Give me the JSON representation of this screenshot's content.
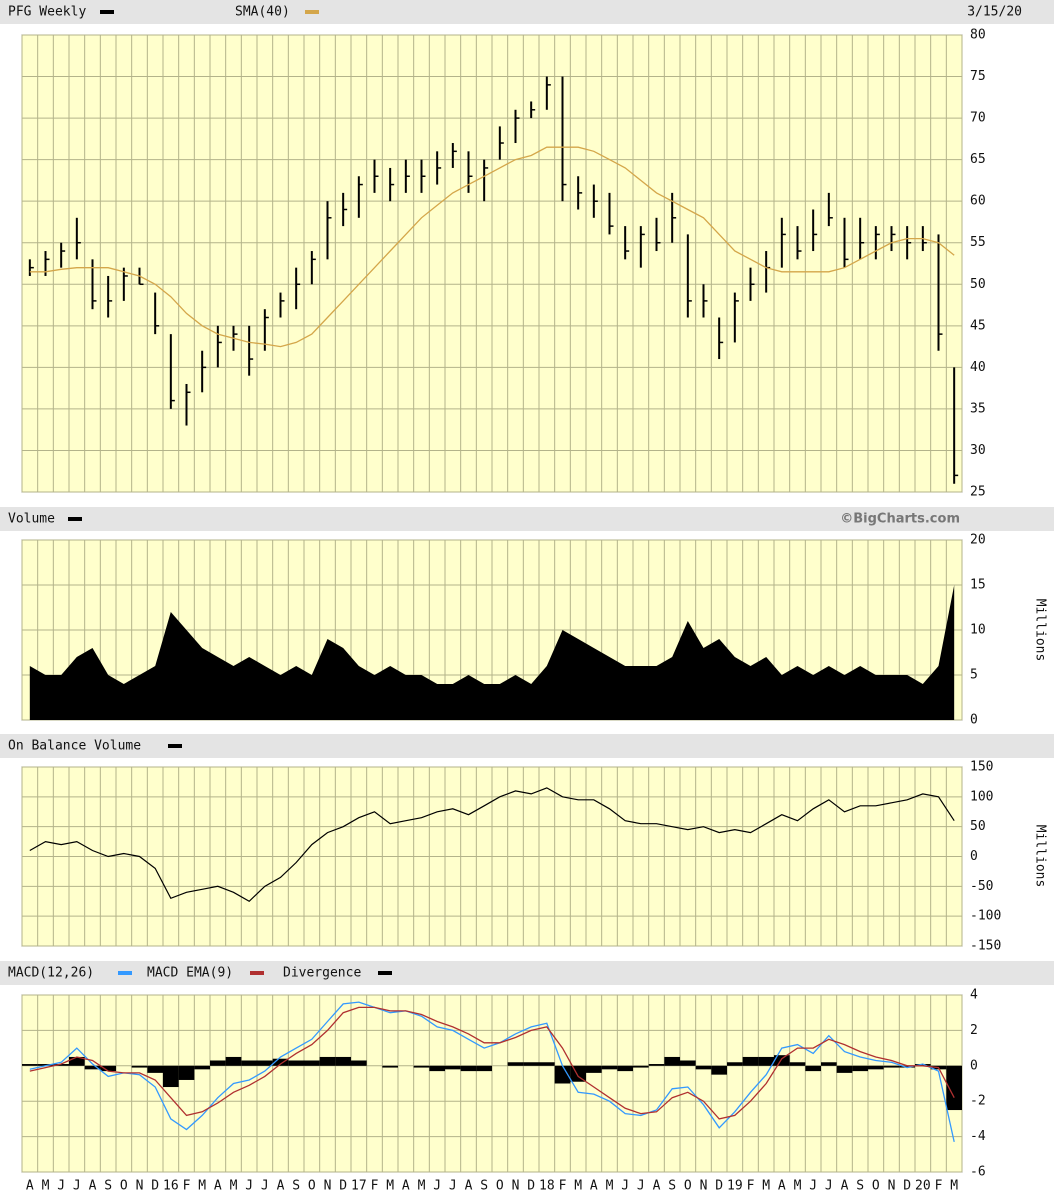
{
  "chart_data": [
    {
      "type": "ohlc",
      "date": "3/15/20",
      "ylim": [
        25,
        80
      ],
      "yticks": [
        25,
        30,
        35,
        40,
        45,
        50,
        55,
        60,
        65,
        70,
        75,
        80
      ],
      "grid": true,
      "series": [
        {
          "name": "PFG Weekly",
          "color": "#000000",
          "high": [
            53,
            54,
            55,
            58,
            53,
            51,
            52,
            52,
            49,
            44,
            38,
            42,
            45,
            45,
            45,
            47,
            49,
            52,
            54,
            60,
            61,
            63,
            65,
            64,
            65,
            65,
            66,
            67,
            66,
            65,
            69,
            71,
            72,
            75,
            75,
            63,
            62,
            61,
            57,
            57,
            58,
            61,
            56,
            50,
            46,
            49,
            52,
            54,
            58,
            57,
            59,
            61,
            58,
            58,
            57,
            57,
            57,
            57,
            56,
            40
          ],
          "low": [
            51,
            51,
            52,
            53,
            47,
            46,
            48,
            50,
            44,
            35,
            33,
            37,
            40,
            42,
            39,
            42,
            46,
            47,
            50,
            53,
            57,
            58,
            61,
            60,
            61,
            61,
            62,
            64,
            61,
            60,
            65,
            67,
            70,
            71,
            60,
            59,
            58,
            56,
            53,
            52,
            54,
            55,
            46,
            46,
            41,
            43,
            48,
            49,
            52,
            53,
            54,
            57,
            52,
            53,
            53,
            54,
            53,
            54,
            42,
            26
          ],
          "close": [
            52,
            53,
            54,
            55,
            48,
            48,
            51,
            50,
            45,
            36,
            37,
            40,
            43,
            44,
            41,
            46,
            48,
            50,
            53,
            58,
            59,
            62,
            63,
            62,
            63,
            63,
            64,
            66,
            63,
            64,
            67,
            70,
            71,
            74,
            62,
            61,
            60,
            57,
            54,
            56,
            55,
            58,
            48,
            48,
            43,
            48,
            50,
            52,
            56,
            54,
            56,
            58,
            53,
            55,
            56,
            56,
            55,
            55,
            44,
            27
          ]
        },
        {
          "name": "SMA(40)",
          "color": "#d4a64a",
          "values": [
            51.5,
            51.5,
            51.8,
            52,
            52,
            52,
            51.5,
            51,
            50,
            48.5,
            46.5,
            45,
            44,
            43.5,
            43,
            42.8,
            42.5,
            43,
            44,
            46,
            48,
            50,
            52,
            54,
            56,
            58,
            59.5,
            61,
            62,
            63,
            64,
            65,
            65.5,
            66.5,
            66.5,
            66.5,
            66,
            65,
            64,
            62.5,
            61,
            60,
            59,
            58,
            56,
            54,
            53,
            52,
            51.5,
            51.5,
            51.5,
            51.5,
            52,
            53,
            54,
            55,
            55.5,
            55.5,
            55,
            53.5
          ]
        }
      ]
    },
    {
      "type": "area",
      "credit": "©BigCharts.com",
      "ylabel": "Millions",
      "ylim": [
        0,
        20
      ],
      "yticks": [
        0,
        5,
        10,
        15,
        20
      ],
      "grid": true,
      "series": [
        {
          "name": "Volume",
          "color": "#000000",
          "values": [
            6,
            5,
            5,
            7,
            8,
            5,
            4,
            5,
            6,
            12,
            10,
            8,
            7,
            6,
            7,
            6,
            5,
            6,
            5,
            9,
            8,
            6,
            5,
            6,
            5,
            5,
            4,
            4,
            5,
            4,
            4,
            5,
            4,
            6,
            10,
            9,
            8,
            7,
            6,
            6,
            6,
            7,
            11,
            8,
            9,
            7,
            6,
            7,
            5,
            6,
            5,
            6,
            5,
            6,
            5,
            5,
            5,
            4,
            6,
            15
          ]
        }
      ]
    },
    {
      "type": "line",
      "ylabel": "Millions",
      "ylim": [
        -150,
        150
      ],
      "yticks": [
        -150,
        -100,
        -50,
        0,
        50,
        100,
        150
      ],
      "grid": true,
      "series": [
        {
          "name": "On Balance Volume",
          "color": "#000000",
          "values": [
            10,
            25,
            20,
            25,
            10,
            0,
            5,
            0,
            -20,
            -70,
            -60,
            -55,
            -50,
            -60,
            -75,
            -50,
            -35,
            -10,
            20,
            40,
            50,
            65,
            75,
            55,
            60,
            65,
            75,
            80,
            70,
            85,
            100,
            110,
            105,
            115,
            100,
            95,
            95,
            80,
            60,
            55,
            55,
            50,
            45,
            50,
            40,
            45,
            40,
            55,
            70,
            60,
            80,
            95,
            75,
            85,
            85,
            90,
            95,
            105,
            100,
            60
          ]
        }
      ]
    },
    {
      "type": "macd",
      "ylim": [
        -6,
        4
      ],
      "yticks": [
        -6,
        -4,
        -2,
        0,
        2,
        4
      ],
      "grid": true,
      "categories": [
        "A",
        "M",
        "J",
        "J",
        "A",
        "S",
        "O",
        "N",
        "D",
        "16",
        "F",
        "M",
        "A",
        "M",
        "J",
        "J",
        "A",
        "S",
        "O",
        "N",
        "D",
        "17",
        "F",
        "M",
        "A",
        "M",
        "J",
        "J",
        "A",
        "S",
        "O",
        "N",
        "D",
        "18",
        "F",
        "M",
        "A",
        "M",
        "J",
        "J",
        "A",
        "S",
        "O",
        "N",
        "D",
        "19",
        "F",
        "M",
        "A",
        "M",
        "J",
        "J",
        "A",
        "S",
        "O",
        "N",
        "D",
        "20",
        "F",
        "M"
      ],
      "series": [
        {
          "name": "MACD(12,26)",
          "color": "#3399ff",
          "style": "line",
          "values": [
            -0.2,
            0,
            0.2,
            1,
            0.1,
            -0.6,
            -0.4,
            -0.5,
            -1.2,
            -3,
            -3.6,
            -2.8,
            -1.8,
            -1,
            -0.8,
            -0.3,
            0.5,
            1,
            1.5,
            2.5,
            3.5,
            3.6,
            3.3,
            3,
            3.1,
            2.8,
            2.2,
            2,
            1.5,
            1,
            1.3,
            1.8,
            2.2,
            2.4,
            0,
            -1.5,
            -1.6,
            -2,
            -2.7,
            -2.8,
            -2.5,
            -1.3,
            -1.2,
            -2.2,
            -3.5,
            -2.6,
            -1.5,
            -0.5,
            1,
            1.2,
            0.7,
            1.7,
            0.8,
            0.5,
            0.3,
            0.2,
            -0.1,
            0.1,
            -0.3,
            -4.3
          ]
        },
        {
          "name": "MACD EMA(9)",
          "color": "#b03030",
          "style": "line",
          "values": [
            -0.3,
            -0.1,
            0.1,
            0.5,
            0.3,
            -0.3,
            -0.4,
            -0.4,
            -0.8,
            -1.8,
            -2.8,
            -2.6,
            -2.1,
            -1.5,
            -1.1,
            -0.6,
            0.1,
            0.7,
            1.2,
            2,
            3,
            3.3,
            3.3,
            3.1,
            3.1,
            2.9,
            2.5,
            2.2,
            1.8,
            1.3,
            1.3,
            1.6,
            2,
            2.2,
            1,
            -0.6,
            -1.2,
            -1.8,
            -2.4,
            -2.7,
            -2.6,
            -1.8,
            -1.5,
            -2,
            -3,
            -2.8,
            -2,
            -1,
            0.4,
            1,
            1,
            1.5,
            1.2,
            0.8,
            0.5,
            0.3,
            0,
            0,
            -0.1,
            -1.8
          ]
        },
        {
          "name": "Divergence",
          "color": "#000000",
          "style": "bar",
          "values": [
            0.1,
            0.1,
            0.1,
            0.5,
            -0.2,
            -0.3,
            0,
            -0.1,
            -0.4,
            -1.2,
            -0.8,
            -0.2,
            0.3,
            0.5,
            0.3,
            0.3,
            0.4,
            0.3,
            0.3,
            0.5,
            0.5,
            0.3,
            0,
            -0.1,
            0,
            -0.1,
            -0.3,
            -0.2,
            -0.3,
            -0.3,
            0,
            0.2,
            0.2,
            0.2,
            -1,
            -0.9,
            -0.4,
            -0.2,
            -0.3,
            -0.1,
            0.1,
            0.5,
            0.3,
            -0.2,
            -0.5,
            0.2,
            0.5,
            0.5,
            0.6,
            0.2,
            -0.3,
            0.2,
            -0.4,
            -0.3,
            -0.2,
            -0.1,
            -0.1,
            0.1,
            -0.2,
            -2.5
          ]
        }
      ]
    }
  ]
}
